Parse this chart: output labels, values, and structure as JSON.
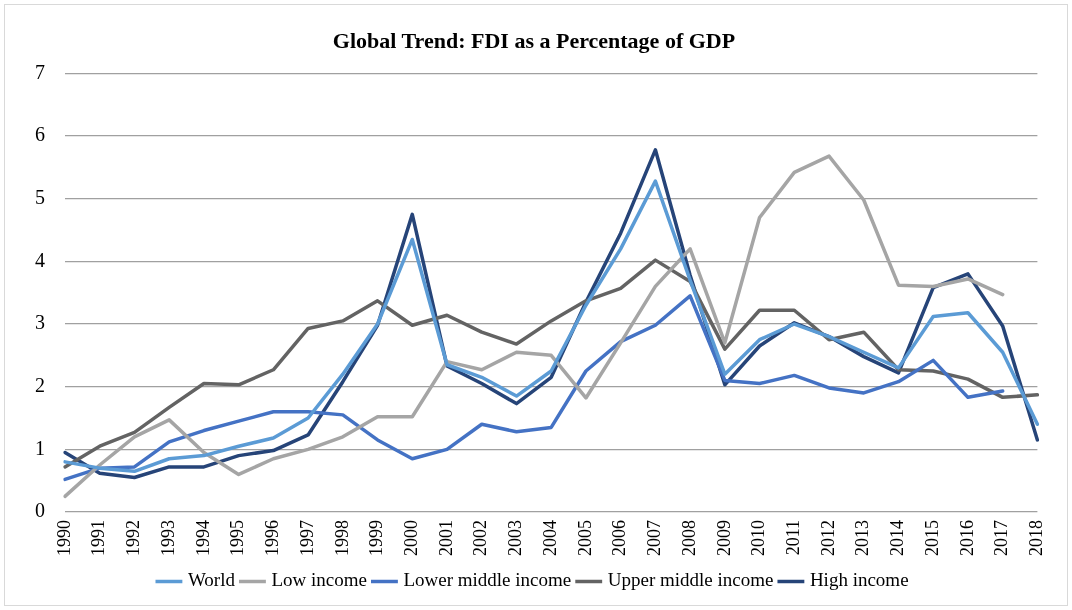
{
  "chart_data": {
    "type": "line",
    "title": "Global Trend: FDI as a Percentage of GDP",
    "categories": [
      "1990",
      "1991",
      "1992",
      "1993",
      "1994",
      "1995",
      "1996",
      "1997",
      "1998",
      "1999",
      "2000",
      "2001",
      "2002",
      "2003",
      "2004",
      "2005",
      "2006",
      "2007",
      "2008",
      "2009",
      "2010",
      "2011",
      "2012",
      "2013",
      "2014",
      "2015",
      "2016",
      "2017",
      "2018"
    ],
    "series": [
      {
        "name": "World",
        "color": "#5b9bd5",
        "values": [
          0.8,
          0.7,
          0.65,
          0.85,
          0.9,
          1.05,
          1.18,
          1.5,
          2.2,
          3.0,
          4.35,
          2.35,
          2.15,
          1.85,
          2.25,
          3.3,
          4.2,
          5.28,
          3.7,
          2.2,
          2.75,
          3.0,
          2.8,
          2.55,
          2.3,
          3.12,
          3.18,
          2.55,
          1.4
        ]
      },
      {
        "name": "Low income",
        "color": "#a5a5a5",
        "values": [
          0.25,
          0.75,
          1.2,
          1.47,
          0.95,
          0.6,
          0.85,
          1.0,
          1.2,
          1.52,
          1.52,
          2.4,
          2.27,
          2.55,
          2.5,
          1.82,
          2.7,
          3.6,
          4.2,
          2.7,
          4.7,
          5.42,
          5.68,
          4.98,
          3.62,
          3.6,
          3.72,
          3.47,
          null
        ]
      },
      {
        "name": "Lower middle income",
        "color": "#4472c4",
        "values": [
          0.52,
          0.7,
          0.72,
          1.12,
          1.3,
          1.45,
          1.6,
          1.6,
          1.55,
          1.15,
          0.85,
          1.0,
          1.4,
          1.28,
          1.35,
          2.25,
          2.72,
          2.98,
          3.45,
          2.1,
          2.05,
          2.18,
          1.98,
          1.9,
          2.08,
          2.42,
          1.83,
          1.93,
          null
        ]
      },
      {
        "name": "Upper middle income",
        "color": "#636363",
        "values": [
          0.72,
          1.05,
          1.27,
          1.67,
          2.05,
          2.03,
          2.27,
          2.93,
          3.05,
          3.37,
          2.98,
          3.14,
          2.87,
          2.68,
          3.05,
          3.37,
          3.57,
          4.02,
          3.68,
          2.6,
          3.22,
          3.22,
          2.75,
          2.87,
          2.27,
          2.25,
          2.12,
          1.83,
          1.87
        ]
      },
      {
        "name": "High income",
        "color": "#264478",
        "values": [
          0.95,
          0.62,
          0.55,
          0.72,
          0.72,
          0.9,
          0.98,
          1.23,
          2.08,
          2.98,
          4.75,
          2.33,
          2.05,
          1.73,
          2.15,
          3.35,
          4.45,
          5.78,
          3.78,
          2.03,
          2.65,
          3.02,
          2.8,
          2.48,
          2.22,
          3.58,
          3.8,
          2.97,
          1.15
        ]
      }
    ],
    "ylim": [
      0,
      7
    ],
    "yticks": [
      0,
      1,
      2,
      3,
      4,
      5,
      6,
      7
    ],
    "grid": "y",
    "legend": "bottom",
    "marker": "none",
    "line_style": "solid"
  }
}
